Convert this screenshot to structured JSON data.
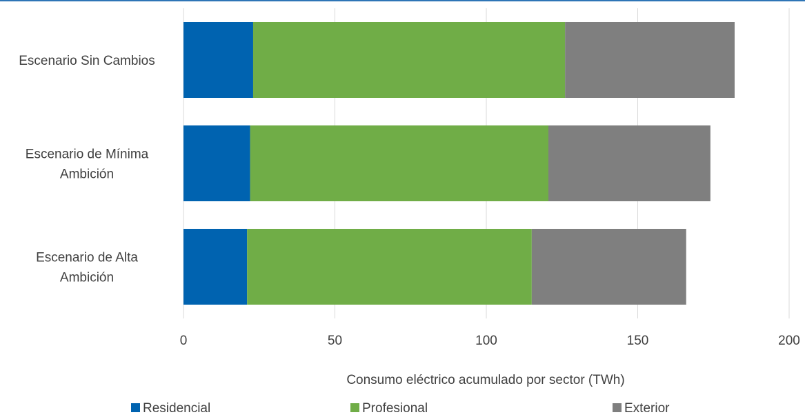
{
  "chart_data": {
    "type": "bar",
    "orientation": "horizontal",
    "stacked": true,
    "title": "",
    "xlabel": "Consumo eléctrico acumulado por sector (TWh)",
    "ylabel": "",
    "xlim": [
      0,
      200
    ],
    "xticks": [
      0,
      50,
      100,
      150,
      200
    ],
    "grid": true,
    "legend_position": "bottom",
    "categories": [
      [
        "Escenario Sin Cambios"
      ],
      [
        "Escenario de Mínima",
        "Ambición"
      ],
      [
        "Escenario de Alta",
        "Ambición"
      ]
    ],
    "series": [
      {
        "name": "Residencial",
        "color": "#0063b0",
        "values": [
          23,
          22,
          21
        ]
      },
      {
        "name": "Profesional",
        "color": "#70ad47",
        "values": [
          103,
          98.5,
          94
        ]
      },
      {
        "name": "Exterior",
        "color": "#7f7f7f",
        "values": [
          56,
          53.5,
          51
        ]
      }
    ]
  }
}
